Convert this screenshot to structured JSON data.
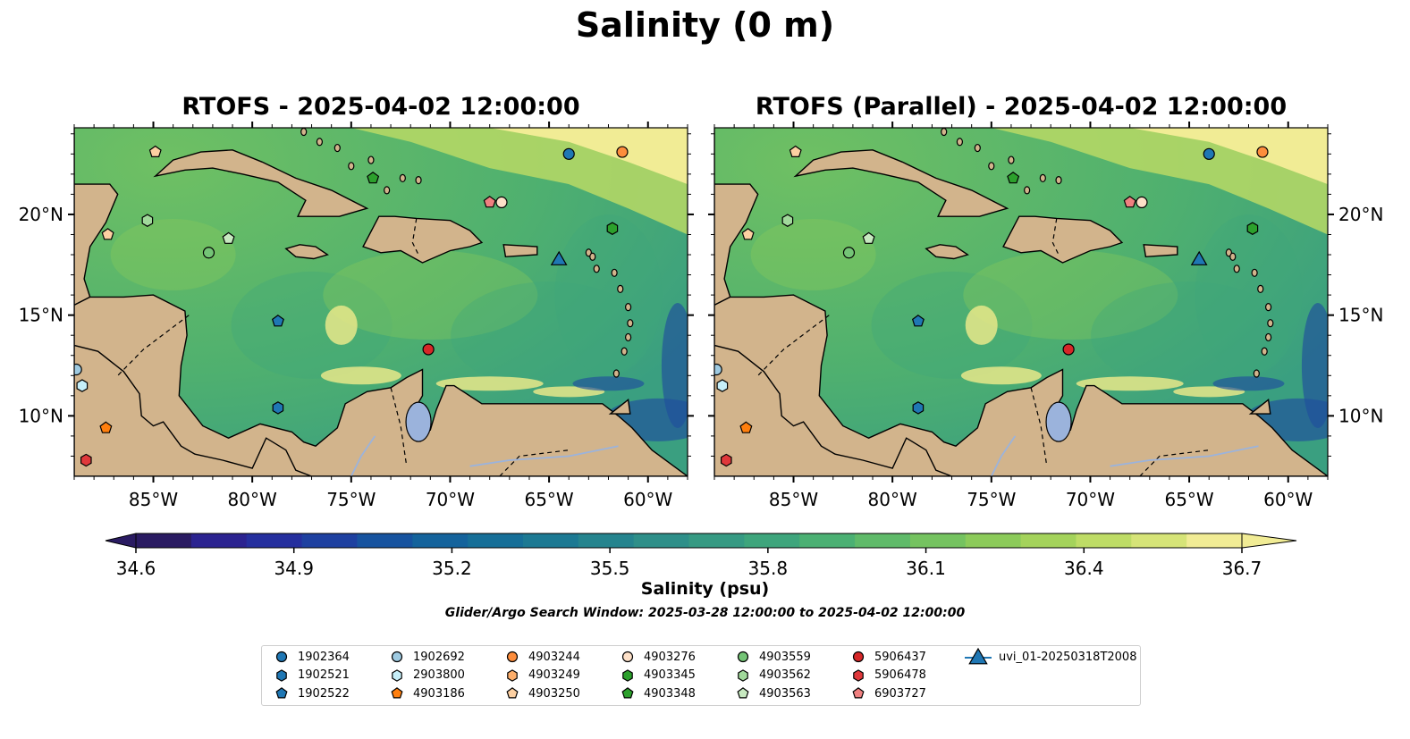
{
  "figure": {
    "title": "Salinity (0 m)",
    "panels": [
      {
        "title": "RTOFS - 2025-04-02 12:00:00"
      },
      {
        "title": "RTOFS (Parallel) - 2025-04-02 12:00:00"
      }
    ],
    "x_ticks": [
      "85°W",
      "80°W",
      "75°W",
      "70°W",
      "65°W",
      "60°W"
    ],
    "y_ticks": [
      "20°N",
      "15°N",
      "10°N"
    ],
    "colorbar": {
      "label": "Salinity (psu)",
      "ticks": [
        "34.6",
        "34.9",
        "35.2",
        "35.5",
        "35.8",
        "36.1",
        "36.4",
        "36.7"
      ],
      "range": [
        34.6,
        36.7
      ],
      "colors": [
        "#2a1b62",
        "#2b2390",
        "#252f9e",
        "#1e40a0",
        "#17539f",
        "#14639c",
        "#166f98",
        "#1c7993",
        "#25848e",
        "#2e8f89",
        "#369a83",
        "#3ea57c",
        "#4bb073",
        "#5fba69",
        "#75c360",
        "#8ccb5a",
        "#a4d35b",
        "#bedc66",
        "#d6e478",
        "#f1ec95"
      ]
    },
    "search_window": "Glider/Argo Search Window: 2025-03-28 12:00:00 to 2025-04-02 12:00:00",
    "map_colors": {
      "land": "#d2b48c",
      "lake": "#9bb3dc",
      "pacific": "#2a1b62"
    }
  },
  "legend": [
    {
      "id": "1902364",
      "marker": "circle",
      "color": "#1f77b4"
    },
    {
      "id": "1902521",
      "marker": "hexagon",
      "color": "#1f77b4"
    },
    {
      "id": "1902522",
      "marker": "pentagon",
      "color": "#1f77b4"
    },
    {
      "id": "1902692",
      "marker": "circle",
      "color": "#9ecae1"
    },
    {
      "id": "2903800",
      "marker": "hexagon",
      "color": "#c6eff9"
    },
    {
      "id": "4903186",
      "marker": "pentagon",
      "color": "#ff7f0e"
    },
    {
      "id": "4903244",
      "marker": "circle",
      "color": "#fd8d3c"
    },
    {
      "id": "4903249",
      "marker": "hexagon",
      "color": "#fdae6b"
    },
    {
      "id": "4903250",
      "marker": "pentagon",
      "color": "#fdd0a2"
    },
    {
      "id": "4903276",
      "marker": "circle",
      "color": "#fde0c8"
    },
    {
      "id": "4903345",
      "marker": "hexagon",
      "color": "#2ca02c"
    },
    {
      "id": "4903348",
      "marker": "pentagon",
      "color": "#2ca02c"
    },
    {
      "id": "4903559",
      "marker": "circle",
      "color": "#74c476"
    },
    {
      "id": "4903562",
      "marker": "hexagon",
      "color": "#a1d99b"
    },
    {
      "id": "4903563",
      "marker": "pentagon",
      "color": "#c7e9c0"
    },
    {
      "id": "5906437",
      "marker": "circle",
      "color": "#d62728"
    },
    {
      "id": "5906478",
      "marker": "hexagon",
      "color": "#e0383b"
    },
    {
      "id": "6903727",
      "marker": "pentagon",
      "color": "#f08080"
    },
    {
      "id": "uvi_01-20250318T2008",
      "marker": "triangle",
      "color": "#1f77b4"
    }
  ],
  "observations": [
    {
      "id": "1902364",
      "lon": -64.0,
      "lat": 23.0
    },
    {
      "id": "4903244",
      "lon": -61.3,
      "lat": 23.1
    },
    {
      "id": "4903250",
      "lon": -84.9,
      "lat": 23.1
    },
    {
      "id": "4903348",
      "lon": -73.9,
      "lat": 21.8
    },
    {
      "id": "6903727",
      "lon": -68.0,
      "lat": 20.6
    },
    {
      "id": "4903276",
      "lon": -67.4,
      "lat": 20.6
    },
    {
      "id": "4903562",
      "lon": -85.3,
      "lat": 19.7
    },
    {
      "id": "4903345",
      "lon": -61.8,
      "lat": 19.3
    },
    {
      "id": "4903250",
      "lon": -87.3,
      "lat": 19.0
    },
    {
      "id": "4903563",
      "lon": -81.2,
      "lat": 18.8
    },
    {
      "id": "4903559",
      "lon": -82.2,
      "lat": 18.1
    },
    {
      "id": "uvi_01-20250318T2008",
      "lon": -64.5,
      "lat": 17.8
    },
    {
      "id": "1902522",
      "lon": -78.7,
      "lat": 14.7
    },
    {
      "id": "5906437",
      "lon": -71.1,
      "lat": 13.3
    },
    {
      "id": "1902692",
      "lon": -88.9,
      "lat": 12.3
    },
    {
      "id": "2903800",
      "lon": -88.6,
      "lat": 11.5
    },
    {
      "id": "1902521",
      "lon": -78.7,
      "lat": 10.4
    },
    {
      "id": "4903186",
      "lon": -87.4,
      "lat": 9.4
    },
    {
      "id": "5906478",
      "lon": -88.4,
      "lat": 7.8
    }
  ]
}
